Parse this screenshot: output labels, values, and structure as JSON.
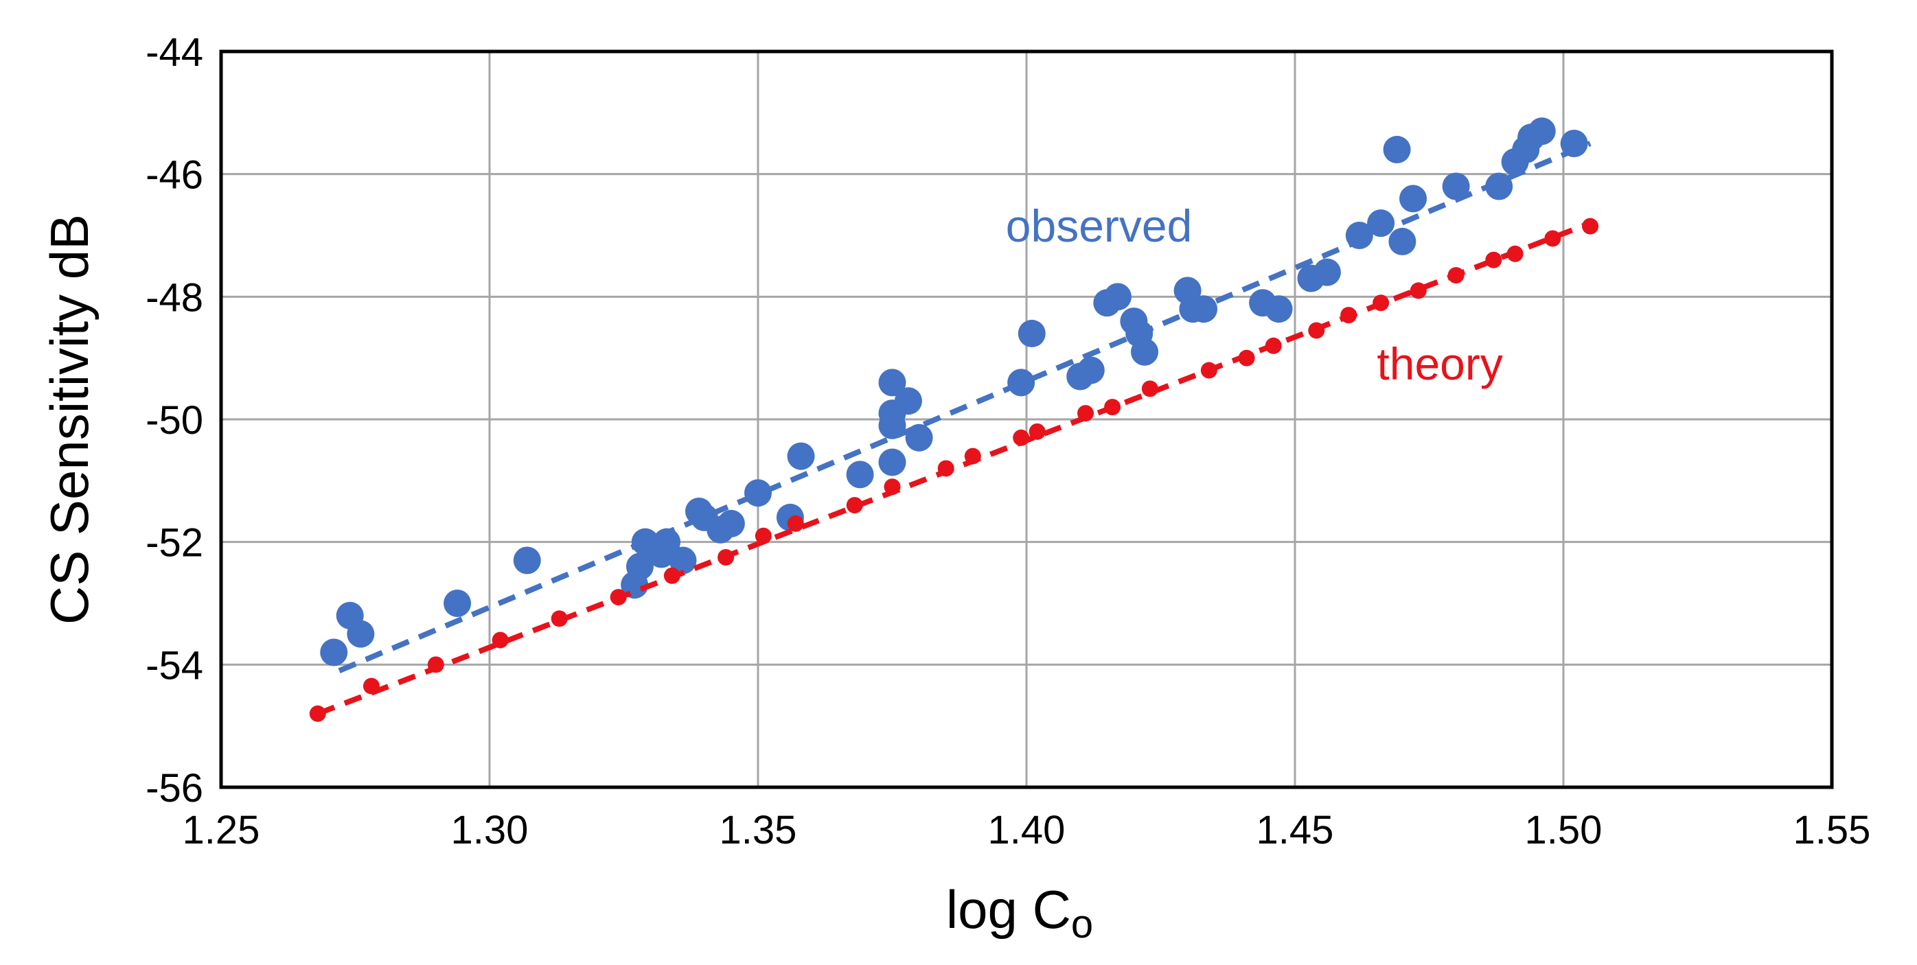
{
  "chart_data": {
    "type": "scatter",
    "title": "",
    "xlabel": "log C",
    "xlabel_subscript": "o",
    "ylabel": "CS Sensitivity  dB",
    "xlim": [
      1.25,
      1.55
    ],
    "ylim": [
      -56,
      -44
    ],
    "xticks": [
      "1.25",
      "1.30",
      "1.35",
      "1.40",
      "1.45",
      "1.50",
      "1.55"
    ],
    "yticks": [
      "-44",
      "-46",
      "-48",
      "-50",
      "-52",
      "-54",
      "-56"
    ],
    "grid": true,
    "series": [
      {
        "name": "observed",
        "color": "#4472C4",
        "marker": "large-dot",
        "trend": {
          "x": [
            1.272,
            1.505
          ],
          "y": [
            -54.1,
            -45.5
          ]
        },
        "points": [
          {
            "x": 1.271,
            "y": -53.8
          },
          {
            "x": 1.274,
            "y": -53.2
          },
          {
            "x": 1.276,
            "y": -53.5
          },
          {
            "x": 1.294,
            "y": -53.0
          },
          {
            "x": 1.307,
            "y": -52.3
          },
          {
            "x": 1.327,
            "y": -52.7
          },
          {
            "x": 1.328,
            "y": -52.4
          },
          {
            "x": 1.329,
            "y": -52.0
          },
          {
            "x": 1.332,
            "y": -52.2
          },
          {
            "x": 1.333,
            "y": -52.0
          },
          {
            "x": 1.336,
            "y": -52.3
          },
          {
            "x": 1.339,
            "y": -51.5
          },
          {
            "x": 1.34,
            "y": -51.6
          },
          {
            "x": 1.343,
            "y": -51.8
          },
          {
            "x": 1.345,
            "y": -51.7
          },
          {
            "x": 1.35,
            "y": -51.2
          },
          {
            "x": 1.356,
            "y": -51.6
          },
          {
            "x": 1.358,
            "y": -50.6
          },
          {
            "x": 1.369,
            "y": -50.9
          },
          {
            "x": 1.375,
            "y": -49.4
          },
          {
            "x": 1.375,
            "y": -49.9
          },
          {
            "x": 1.375,
            "y": -50.1
          },
          {
            "x": 1.375,
            "y": -50.7
          },
          {
            "x": 1.378,
            "y": -49.7
          },
          {
            "x": 1.38,
            "y": -50.3
          },
          {
            "x": 1.399,
            "y": -49.4
          },
          {
            "x": 1.401,
            "y": -48.6
          },
          {
            "x": 1.41,
            "y": -49.3
          },
          {
            "x": 1.412,
            "y": -49.2
          },
          {
            "x": 1.415,
            "y": -48.1
          },
          {
            "x": 1.417,
            "y": -48.0
          },
          {
            "x": 1.42,
            "y": -48.4
          },
          {
            "x": 1.421,
            "y": -48.6
          },
          {
            "x": 1.422,
            "y": -48.9
          },
          {
            "x": 1.43,
            "y": -47.9
          },
          {
            "x": 1.431,
            "y": -48.2
          },
          {
            "x": 1.433,
            "y": -48.2
          },
          {
            "x": 1.444,
            "y": -48.1
          },
          {
            "x": 1.447,
            "y": -48.2
          },
          {
            "x": 1.453,
            "y": -47.7
          },
          {
            "x": 1.456,
            "y": -47.6
          },
          {
            "x": 1.462,
            "y": -47.0
          },
          {
            "x": 1.466,
            "y": -46.8
          },
          {
            "x": 1.469,
            "y": -45.6
          },
          {
            "x": 1.47,
            "y": -47.1
          },
          {
            "x": 1.472,
            "y": -46.4
          },
          {
            "x": 1.48,
            "y": -46.2
          },
          {
            "x": 1.488,
            "y": -46.2
          },
          {
            "x": 1.491,
            "y": -45.8
          },
          {
            "x": 1.493,
            "y": -45.6
          },
          {
            "x": 1.494,
            "y": -45.4
          },
          {
            "x": 1.496,
            "y": -45.3
          },
          {
            "x": 1.502,
            "y": -45.5
          }
        ]
      },
      {
        "name": "theory",
        "color": "#E8121B",
        "marker": "small-dot",
        "trend": {
          "x": [
            1.268,
            1.505
          ],
          "y": [
            -54.8,
            -46.8
          ]
        },
        "points": [
          {
            "x": 1.268,
            "y": -54.8
          },
          {
            "x": 1.278,
            "y": -54.35
          },
          {
            "x": 1.29,
            "y": -54.0
          },
          {
            "x": 1.302,
            "y": -53.6
          },
          {
            "x": 1.313,
            "y": -53.25
          },
          {
            "x": 1.324,
            "y": -52.9
          },
          {
            "x": 1.334,
            "y": -52.55
          },
          {
            "x": 1.344,
            "y": -52.25
          },
          {
            "x": 1.351,
            "y": -51.9
          },
          {
            "x": 1.357,
            "y": -51.7
          },
          {
            "x": 1.368,
            "y": -51.4
          },
          {
            "x": 1.375,
            "y": -51.1
          },
          {
            "x": 1.385,
            "y": -50.8
          },
          {
            "x": 1.39,
            "y": -50.6
          },
          {
            "x": 1.399,
            "y": -50.3
          },
          {
            "x": 1.402,
            "y": -50.2
          },
          {
            "x": 1.411,
            "y": -49.9
          },
          {
            "x": 1.416,
            "y": -49.8
          },
          {
            "x": 1.423,
            "y": -49.5
          },
          {
            "x": 1.434,
            "y": -49.2
          },
          {
            "x": 1.441,
            "y": -49.0
          },
          {
            "x": 1.446,
            "y": -48.8
          },
          {
            "x": 1.454,
            "y": -48.55
          },
          {
            "x": 1.46,
            "y": -48.3
          },
          {
            "x": 1.466,
            "y": -48.1
          },
          {
            "x": 1.473,
            "y": -47.9
          },
          {
            "x": 1.48,
            "y": -47.65
          },
          {
            "x": 1.487,
            "y": -47.4
          },
          {
            "x": 1.491,
            "y": -47.3
          },
          {
            "x": 1.498,
            "y": -47.05
          },
          {
            "x": 1.505,
            "y": -46.85
          }
        ]
      }
    ],
    "annotations": [
      {
        "text": "observed",
        "color": "#4472C4",
        "series": "observed"
      },
      {
        "text": "theory",
        "color": "#E8121B",
        "series": "theory"
      }
    ]
  }
}
